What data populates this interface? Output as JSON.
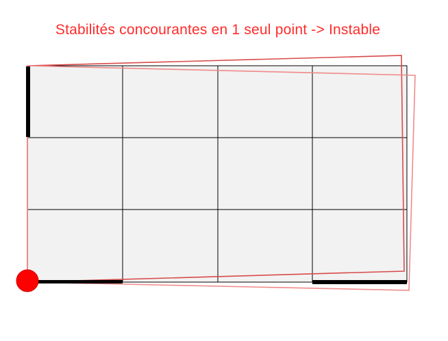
{
  "title": "Stabilités concourantes en 1 seul point -> Instable",
  "colors": {
    "title": "#ff2a2a",
    "grid_fill": "#f2f2f2",
    "grid_lines": "#000000",
    "deformed_outline": "#e05050",
    "deformed_outline_light": "#f09090",
    "support_bars": "#000000",
    "pivot": "#ff0000"
  },
  "grid": {
    "columns": 4,
    "rows": 3
  }
}
